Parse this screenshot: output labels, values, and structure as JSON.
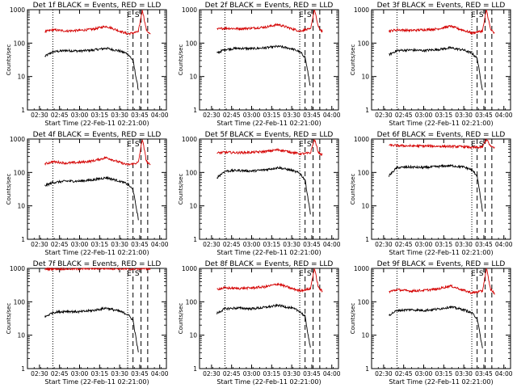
{
  "figure": {
    "y_ticks": [
      "1",
      "10",
      "100",
      "1000"
    ],
    "x_ticks": [
      "02:30",
      "02:45",
      "03:00",
      "03:15",
      "03:30",
      "03:45",
      "04:00"
    ],
    "marker_labels": [
      "E",
      "S"
    ],
    "colors": {
      "events": "#000000",
      "lld": "#d40000"
    }
  },
  "chart_data": [
    {
      "type": "line",
      "title": "Det 1f BLACK = Events, RED = LLD",
      "xlabel": "Start Time (22-Feb-11 02:21:00)",
      "ylabel": "Counts/sec",
      "yscale": "log",
      "xlim": [
        "02:21",
        "04:05"
      ],
      "ylim": [
        1,
        1000
      ],
      "x": [
        "02:34",
        "02:40",
        "02:50",
        "03:00",
        "03:10",
        "03:20",
        "03:30",
        "03:36",
        "03:40",
        "03:44",
        "03:47",
        "03:50",
        "03:53"
      ],
      "series": [
        {
          "name": "Events",
          "color": "#000000",
          "values": [
            40,
            55,
            60,
            58,
            62,
            70,
            58,
            48,
            30,
            4,
            null,
            null,
            null
          ]
        },
        {
          "name": "LLD",
          "color": "#d40000",
          "values": [
            220,
            250,
            230,
            240,
            260,
            320,
            230,
            190,
            200,
            220,
            1000,
            250,
            180
          ]
        }
      ],
      "dotted_lines_at": [
        "02:40",
        "03:36"
      ],
      "dashed_lines_at": [
        "03:40",
        "03:46",
        "03:51"
      ]
    },
    {
      "type": "line",
      "title": "Det 2f BLACK = Events, RED = LLD",
      "xlabel": "Start Time (22-Feb-11 02:21:00)",
      "ylabel": "Counts/sec",
      "yscale": "log",
      "xlim": [
        "02:21",
        "04:05"
      ],
      "ylim": [
        1,
        1000
      ],
      "x": [
        "02:34",
        "02:40",
        "02:50",
        "03:00",
        "03:10",
        "03:20",
        "03:30",
        "03:36",
        "03:40",
        "03:44",
        "03:47",
        "03:50",
        "03:53"
      ],
      "series": [
        {
          "name": "Events",
          "color": "#000000",
          "values": [
            50,
            65,
            70,
            68,
            72,
            80,
            68,
            55,
            38,
            5,
            null,
            null,
            null
          ]
        },
        {
          "name": "LLD",
          "color": "#d40000",
          "values": [
            260,
            280,
            270,
            280,
            300,
            360,
            270,
            230,
            250,
            260,
            1000,
            300,
            220
          ]
        }
      ],
      "dotted_lines_at": [
        "02:40",
        "03:36"
      ],
      "dashed_lines_at": [
        "03:40",
        "03:46",
        "03:51"
      ]
    },
    {
      "type": "line",
      "title": "Det 3f BLACK = Events, RED = LLD",
      "xlabel": "Start Time (22-Feb-11 02:21:00)",
      "ylabel": "Counts/sec",
      "yscale": "log",
      "xlim": [
        "02:21",
        "04:05"
      ],
      "ylim": [
        1,
        1000
      ],
      "x": [
        "02:34",
        "02:40",
        "02:50",
        "03:00",
        "03:10",
        "03:20",
        "03:30",
        "03:36",
        "03:40",
        "03:44",
        "03:47",
        "03:50",
        "03:53"
      ],
      "series": [
        {
          "name": "Events",
          "color": "#000000",
          "values": [
            45,
            60,
            62,
            60,
            64,
            72,
            62,
            50,
            35,
            4,
            null,
            null,
            null
          ]
        },
        {
          "name": "LLD",
          "color": "#d40000",
          "values": [
            230,
            250,
            240,
            250,
            265,
            320,
            240,
            200,
            215,
            230,
            1000,
            260,
            190
          ]
        }
      ],
      "dotted_lines_at": [
        "02:40",
        "03:36"
      ],
      "dashed_lines_at": [
        "03:40",
        "03:46",
        "03:51"
      ]
    },
    {
      "type": "line",
      "title": "Det 4f BLACK = Events, RED = LLD",
      "xlabel": "Start Time (22-Feb-11 02:21:00)",
      "ylabel": "Counts/sec",
      "yscale": "log",
      "xlim": [
        "02:21",
        "04:05"
      ],
      "ylim": [
        1,
        1000
      ],
      "x": [
        "02:34",
        "02:40",
        "02:50",
        "03:00",
        "03:10",
        "03:20",
        "03:30",
        "03:36",
        "03:40",
        "03:44",
        "03:47",
        "03:50",
        "03:53"
      ],
      "series": [
        {
          "name": "Events",
          "color": "#000000",
          "values": [
            40,
            50,
            55,
            55,
            60,
            70,
            55,
            45,
            30,
            4,
            null,
            null,
            null
          ]
        },
        {
          "name": "LLD",
          "color": "#d40000",
          "values": [
            180,
            210,
            190,
            200,
            220,
            280,
            200,
            170,
            180,
            200,
            1000,
            220,
            160
          ]
        }
      ],
      "dotted_lines_at": [
        "02:40",
        "03:36"
      ],
      "dashed_lines_at": [
        "03:40",
        "03:46",
        "03:51"
      ]
    },
    {
      "type": "line",
      "title": "Det 5f BLACK = Events, RED = LLD",
      "xlabel": "Start Time (22-Feb-11 02:21:00)",
      "ylabel": "Counts/sec",
      "yscale": "log",
      "xlim": [
        "02:21",
        "04:05"
      ],
      "ylim": [
        1,
        1000
      ],
      "x": [
        "02:34",
        "02:40",
        "02:50",
        "03:00",
        "03:10",
        "03:20",
        "03:30",
        "03:36",
        "03:40",
        "03:44",
        "03:47",
        "03:50",
        "03:53"
      ],
      "series": [
        {
          "name": "Events",
          "color": "#000000",
          "values": [
            70,
            110,
            115,
            110,
            120,
            140,
            115,
            95,
            60,
            6,
            null,
            null,
            null
          ]
        },
        {
          "name": "LLD",
          "color": "#d40000",
          "values": [
            380,
            400,
            390,
            400,
            420,
            480,
            400,
            360,
            370,
            380,
            1000,
            400,
            330
          ]
        }
      ],
      "dotted_lines_at": [
        "02:40",
        "03:36"
      ],
      "dashed_lines_at": [
        "03:40",
        "03:46",
        "03:51"
      ]
    },
    {
      "type": "line",
      "title": "Det 6f BLACK = Events, RED = LLD",
      "xlabel": "Start Time (22-Feb-11 02:21:00)",
      "ylabel": "Counts/sec",
      "yscale": "log",
      "xlim": [
        "02:21",
        "04:05"
      ],
      "ylim": [
        1,
        1000
      ],
      "x": [
        "02:34",
        "02:40",
        "02:50",
        "03:00",
        "03:10",
        "03:20",
        "03:30",
        "03:36",
        "03:40",
        "03:44",
        "03:47",
        "03:50",
        "03:53"
      ],
      "series": [
        {
          "name": "Events",
          "color": "#000000",
          "values": [
            80,
            140,
            145,
            140,
            150,
            160,
            145,
            120,
            80,
            7,
            null,
            null,
            null
          ]
        },
        {
          "name": "LLD",
          "color": "#d40000",
          "values": [
            650,
            640,
            620,
            620,
            610,
            600,
            590,
            560,
            560,
            570,
            1000,
            600,
            560
          ]
        }
      ],
      "dotted_lines_at": [
        "02:40",
        "03:36"
      ],
      "dashed_lines_at": [
        "03:40",
        "03:46",
        "03:51"
      ]
    },
    {
      "type": "line",
      "title": "Det 7f BLACK = Events, RED = LLD",
      "xlabel": "Start Time (22-Feb-11 02:21:00)",
      "ylabel": "Counts/sec",
      "yscale": "log",
      "xlim": [
        "02:21",
        "04:05"
      ],
      "ylim": [
        1,
        1000
      ],
      "x": [
        "02:34",
        "02:40",
        "02:50",
        "03:00",
        "03:10",
        "03:20",
        "03:30",
        "03:36",
        "03:40",
        "03:44",
        "03:47",
        "03:50",
        "03:53"
      ],
      "series": [
        {
          "name": "Events",
          "color": "#000000",
          "values": [
            35,
            48,
            52,
            50,
            55,
            65,
            52,
            42,
            28,
            3,
            null,
            null,
            null
          ]
        },
        {
          "name": "LLD",
          "color": "#d40000",
          "values": [
            950,
            980,
            960,
            970,
            990,
            1000,
            980,
            950,
            960,
            970,
            1000,
            980,
            950
          ]
        }
      ],
      "dotted_lines_at": [
        "02:40",
        "03:36"
      ],
      "dashed_lines_at": [
        "03:40",
        "03:46",
        "03:51"
      ]
    },
    {
      "type": "line",
      "title": "Det 8f BLACK = Events, RED = LLD",
      "xlabel": "Start Time (22-Feb-11 02:21:00)",
      "ylabel": "Counts/sec",
      "yscale": "log",
      "xlim": [
        "02:21",
        "04:05"
      ],
      "ylim": [
        1,
        1000
      ],
      "x": [
        "02:34",
        "02:40",
        "02:50",
        "03:00",
        "03:10",
        "03:20",
        "03:30",
        "03:36",
        "03:40",
        "03:44",
        "03:47",
        "03:50",
        "03:53"
      ],
      "series": [
        {
          "name": "Events",
          "color": "#000000",
          "values": [
            45,
            62,
            65,
            62,
            68,
            78,
            65,
            52,
            36,
            4,
            null,
            null,
            null
          ]
        },
        {
          "name": "LLD",
          "color": "#d40000",
          "values": [
            240,
            260,
            250,
            260,
            280,
            340,
            250,
            215,
            230,
            245,
            1000,
            270,
            200
          ]
        }
      ],
      "dotted_lines_at": [
        "02:40",
        "03:36"
      ],
      "dashed_lines_at": [
        "03:40",
        "03:46",
        "03:51"
      ]
    },
    {
      "type": "line",
      "title": "Det 9f BLACK = Events, RED = LLD",
      "xlabel": "Start Time (22-Feb-11 02:21:00)",
      "ylabel": "Counts/sec",
      "yscale": "log",
      "xlim": [
        "02:21",
        "04:05"
      ],
      "ylim": [
        1,
        1000
      ],
      "x": [
        "02:34",
        "02:40",
        "02:50",
        "03:00",
        "03:10",
        "03:20",
        "03:30",
        "03:36",
        "03:40",
        "03:44",
        "03:47",
        "03:50",
        "03:53"
      ],
      "series": [
        {
          "name": "Events",
          "color": "#000000",
          "values": [
            40,
            55,
            58,
            55,
            60,
            70,
            58,
            46,
            32,
            4,
            null,
            null,
            null
          ]
        },
        {
          "name": "LLD",
          "color": "#d40000",
          "values": [
            200,
            230,
            210,
            220,
            240,
            300,
            220,
            185,
            195,
            210,
            1000,
            240,
            175
          ]
        }
      ],
      "dotted_lines_at": [
        "02:40",
        "03:36"
      ],
      "dashed_lines_at": [
        "03:40",
        "03:46",
        "03:51"
      ]
    }
  ]
}
